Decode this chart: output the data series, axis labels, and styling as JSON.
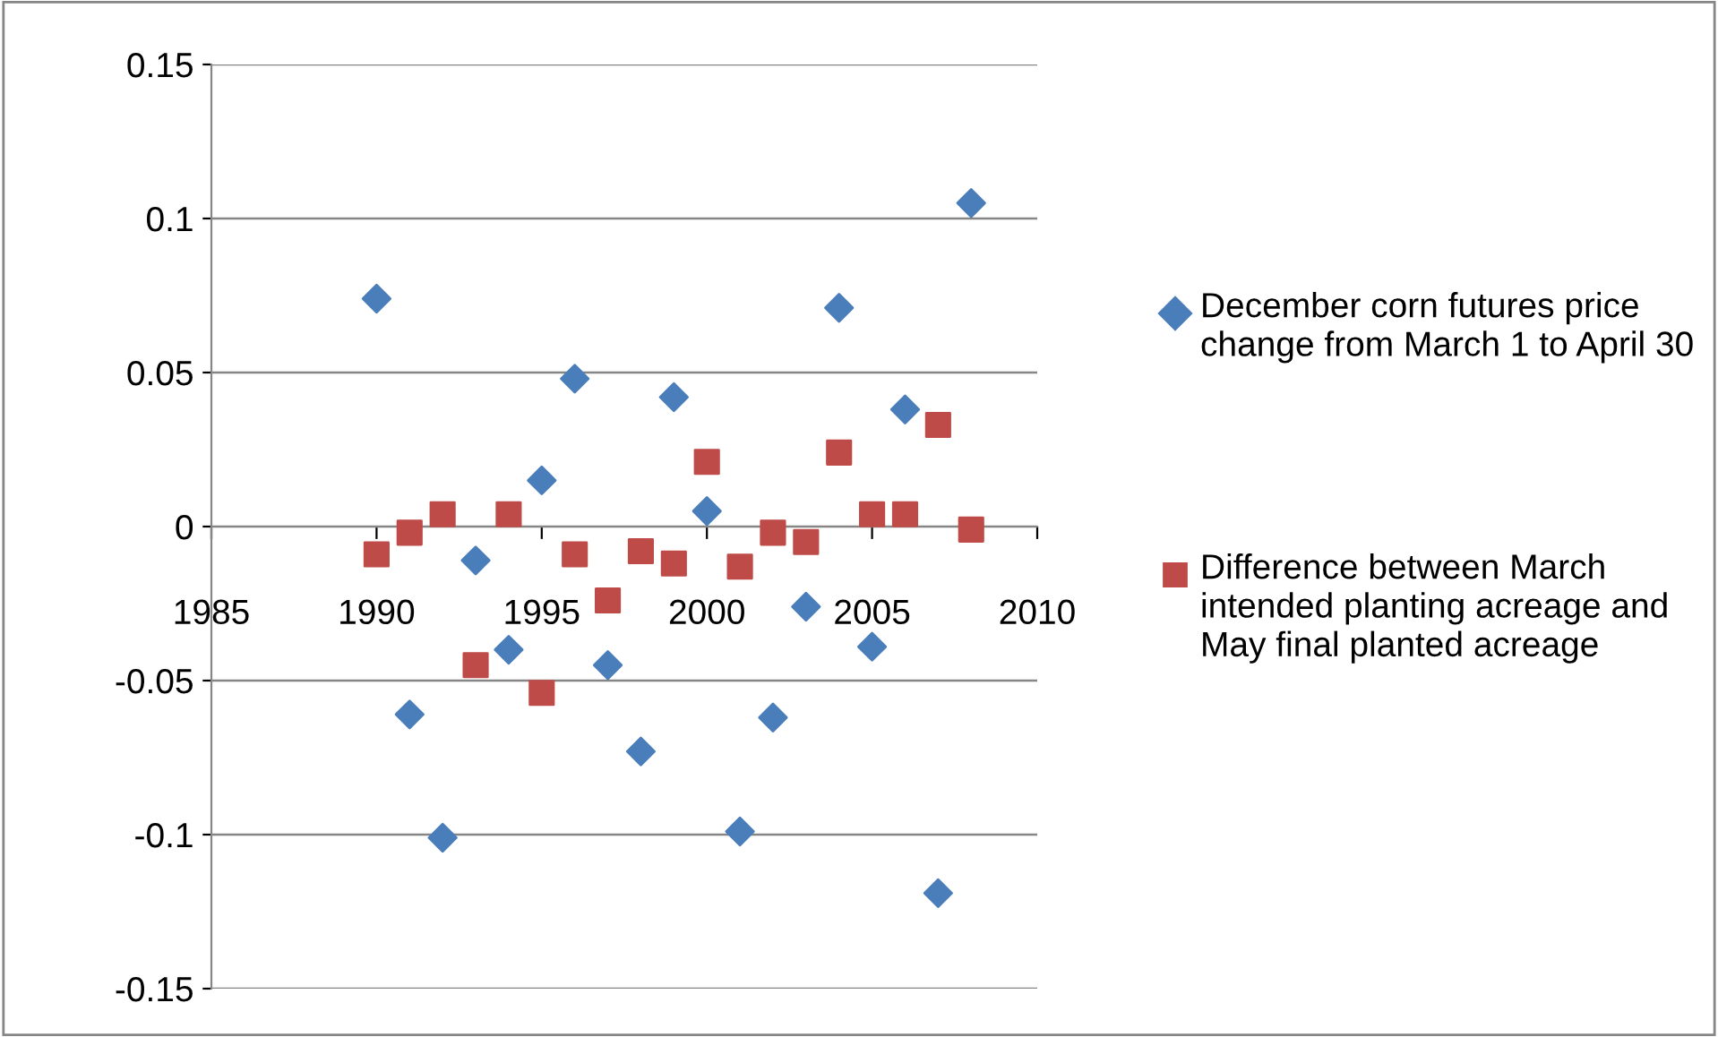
{
  "chart_data": {
    "type": "scatter",
    "x": [
      1990,
      1991,
      1992,
      1993,
      1994,
      1995,
      1996,
      1997,
      1998,
      1999,
      2000,
      2001,
      2002,
      2003,
      2004,
      2005,
      2006,
      2007,
      2008
    ],
    "series": [
      {
        "name": "December corn futures price change from March 1 to April 30",
        "color": "#4a7ebb",
        "marker": "diamond",
        "values": [
          0.074,
          -0.061,
          -0.101,
          -0.011,
          -0.04,
          0.015,
          0.048,
          -0.045,
          -0.073,
          0.042,
          0.005,
          -0.099,
          -0.062,
          -0.026,
          0.071,
          -0.039,
          0.038,
          -0.119,
          0.105
        ]
      },
      {
        "name": "Difference between March intended planting acreage and May final planted acreage",
        "color": "#be4b48",
        "marker": "square",
        "values": [
          -0.009,
          -0.002,
          0.004,
          -0.045,
          0.004,
          -0.054,
          -0.009,
          -0.024,
          -0.008,
          -0.012,
          0.021,
          -0.013,
          -0.002,
          -0.005,
          0.024,
          0.004,
          0.004,
          0.033,
          -0.001
        ]
      }
    ],
    "xlim": [
      1985,
      2010
    ],
    "xticks": [
      1985,
      1990,
      1995,
      2000,
      2005,
      2010
    ],
    "ylim": [
      -0.15,
      0.15
    ],
    "yticks": [
      -0.15,
      -0.1,
      -0.05,
      0,
      0.05,
      0.1,
      0.15
    ],
    "grid": "y",
    "legend": "right"
  }
}
